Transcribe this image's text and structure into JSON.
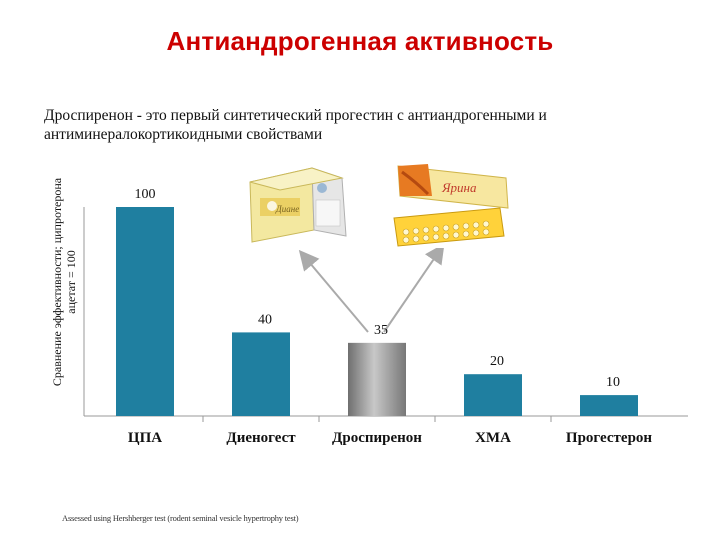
{
  "slide": {
    "title": "Антиандрогенная активность",
    "subtitle": "Дроспиренон - это первый синтетический прогестин с антиандрогенными и антиминералокортикоидными свойствами",
    "footnote": "Assessed using Hershberger test (rodent seminal vesicle hypertrophy test)",
    "products": [
      {
        "name": "Диане",
        "icon": "blister-pack-box"
      },
      {
        "name": "Ярина",
        "icon": "blister-pack-box"
      }
    ]
  },
  "chart_data": {
    "type": "bar",
    "categories": [
      "ЦПА",
      "Диеногест",
      "Дроспиренон",
      "ХМА",
      "Прогестерон"
    ],
    "values": [
      100,
      40,
      35,
      20,
      10
    ],
    "value_labels": [
      "100",
      "40",
      "35",
      "20",
      "10"
    ],
    "ylabel": "Сравнение эффективности; ципротерона ацетат = 100",
    "ylim": [
      0,
      100
    ],
    "grid": false,
    "colors": {
      "bar": "#1f7fa0",
      "highlight_bar": "#a0a0a0",
      "title": "#cc0000"
    },
    "highlight_category": "Дроспиренон"
  }
}
